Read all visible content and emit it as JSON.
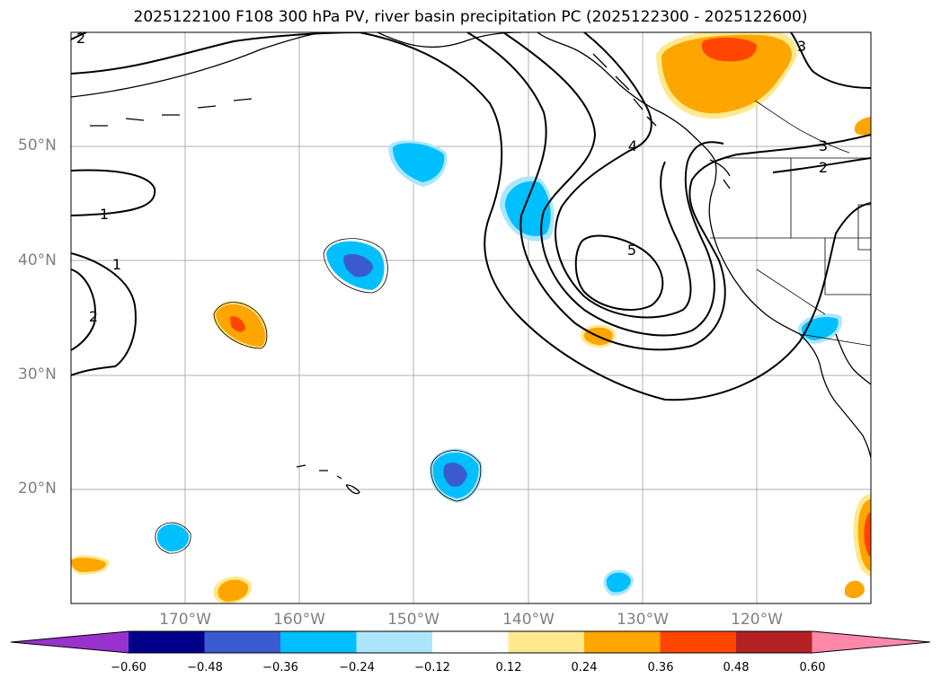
{
  "title": "2025122100 F108 300 hPa PV, river basin precipitation PC (2025122300 - 2025122600)",
  "map": {
    "lon_range": [
      -180,
      -110
    ],
    "lat_range": [
      10,
      60
    ],
    "lat_labels": [
      {
        "lat": 50,
        "text": "50°N"
      },
      {
        "lat": 40,
        "text": "40°N"
      },
      {
        "lat": 30,
        "text": "30°N"
      },
      {
        "lat": 20,
        "text": "20°N"
      }
    ],
    "lon_labels": [
      {
        "lon": -170,
        "text": "170°W"
      },
      {
        "lon": -160,
        "text": "160°W"
      },
      {
        "lon": -150,
        "text": "150°W"
      },
      {
        "lon": -140,
        "text": "140°W"
      },
      {
        "lon": -130,
        "text": "130°W"
      },
      {
        "lon": -120,
        "text": "120°W"
      }
    ],
    "pv_contour_labels": [
      {
        "text": "1",
        "lon": -177,
        "lat": 44
      },
      {
        "text": "1",
        "lon": -176,
        "lat": 38
      },
      {
        "text": "2",
        "lon": -178,
        "lat": 35
      },
      {
        "text": "2",
        "lon": -179,
        "lat": 59.5
      },
      {
        "text": "3",
        "lon": -112,
        "lat": 50
      },
      {
        "text": "2",
        "lon": -112,
        "lat": 48
      },
      {
        "text": "3",
        "lon": -113.5,
        "lat": 58.5
      },
      {
        "text": "4",
        "lon": -133,
        "lat": 50
      },
      {
        "text": "5",
        "lon": -133,
        "lat": 41
      }
    ]
  },
  "colorbar": {
    "colors": [
      "#9932cc",
      "#00008b",
      "#3a5bd0",
      "#00bfff",
      "#ade6fc",
      "#ffffff",
      "#ffe98f",
      "#ffa500",
      "#ff4500",
      "#b22222",
      "#ff88aa"
    ],
    "ticks": [
      "−0.60",
      "−0.48",
      "−0.36",
      "−0.24",
      "−0.12",
      "0.12",
      "0.24",
      "0.36",
      "0.48",
      "0.60"
    ]
  }
}
